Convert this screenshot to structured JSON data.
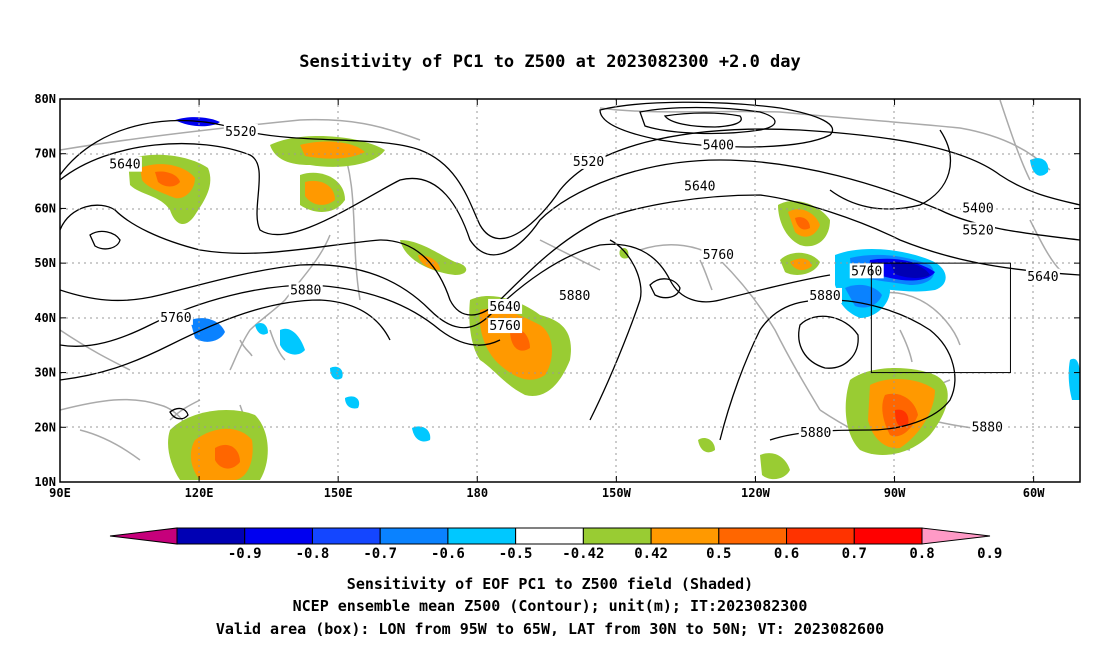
{
  "title": "Sensitivity of PC1 to Z500 at 2023082300 +2.0 day",
  "map": {
    "lon_range": [
      90,
      310
    ],
    "lat_range": [
      10,
      80
    ],
    "lon_ticks": [
      {
        "lon": 90,
        "label": "90E"
      },
      {
        "lon": 120,
        "label": "120E"
      },
      {
        "lon": 150,
        "label": "150E"
      },
      {
        "lon": 180,
        "label": "180"
      },
      {
        "lon": 210,
        "label": "150W"
      },
      {
        "lon": 240,
        "label": "120W"
      },
      {
        "lon": 270,
        "label": "90W"
      },
      {
        "lon": 300,
        "label": "60W"
      }
    ],
    "lat_ticks": [
      {
        "lat": 10,
        "label": "10N"
      },
      {
        "lat": 20,
        "label": "20N"
      },
      {
        "lat": 30,
        "label": "30N"
      },
      {
        "lat": 40,
        "label": "40N"
      },
      {
        "lat": 50,
        "label": "50N"
      },
      {
        "lat": 60,
        "label": "60N"
      },
      {
        "lat": 70,
        "label": "70N"
      },
      {
        "lat": 80,
        "label": "80N"
      }
    ],
    "grid_lines": true,
    "valid_box": {
      "lon_min": 265,
      "lon_max": 295,
      "lat_min": 30,
      "lat_max": 50
    },
    "contour_labels": [
      {
        "value": "5520",
        "lon": 129,
        "lat": 74
      },
      {
        "value": "5640",
        "lon": 104,
        "lat": 68
      },
      {
        "value": "5520",
        "lon": 204,
        "lat": 68.5
      },
      {
        "value": "5400",
        "lon": 232,
        "lat": 71.5
      },
      {
        "value": "5640",
        "lon": 228,
        "lat": 64
      },
      {
        "value": "5400",
        "lon": 288,
        "lat": 60
      },
      {
        "value": "5520",
        "lon": 288,
        "lat": 56
      },
      {
        "value": "5760",
        "lon": 232,
        "lat": 51.5
      },
      {
        "value": "5760",
        "lon": 264,
        "lat": 48.5
      },
      {
        "value": "5640",
        "lon": 302,
        "lat": 47.5
      },
      {
        "value": "5880",
        "lon": 143,
        "lat": 45
      },
      {
        "value": "5880",
        "lon": 201,
        "lat": 44
      },
      {
        "value": "5880",
        "lon": 255,
        "lat": 44
      },
      {
        "value": "5640",
        "lon": 186,
        "lat": 42
      },
      {
        "value": "5760",
        "lon": 186,
        "lat": 38.5
      },
      {
        "value": "5760",
        "lon": 115,
        "lat": 40
      },
      {
        "value": "5880",
        "lon": 253,
        "lat": 19
      },
      {
        "value": "5880",
        "lon": 290,
        "lat": 20
      }
    ]
  },
  "colorbar": {
    "labels": [
      "-0.9",
      "-0.8",
      "-0.7",
      "-0.6",
      "-0.5",
      "-0.42",
      "0.42",
      "0.5",
      "0.6",
      "0.7",
      "0.8",
      "0.9"
    ],
    "colors": [
      "#c6007b",
      "#0000b4",
      "#0000f0",
      "#1446ff",
      "#0a82ff",
      "#00c8ff",
      "#ffffff",
      "#99cc33",
      "#ff9900",
      "#ff6600",
      "#ff3300",
      "#ff0000",
      "#ff9ac6"
    ]
  },
  "captions": [
    "Sensitivity of EOF PC1 to Z500 field (Shaded)",
    "NCEP ensemble mean Z500 (Contour); unit(m); IT:2023082300",
    "Valid area (box): LON from 95W to 65W, LAT from 30N to 50N; VT: 2023082600"
  ]
}
